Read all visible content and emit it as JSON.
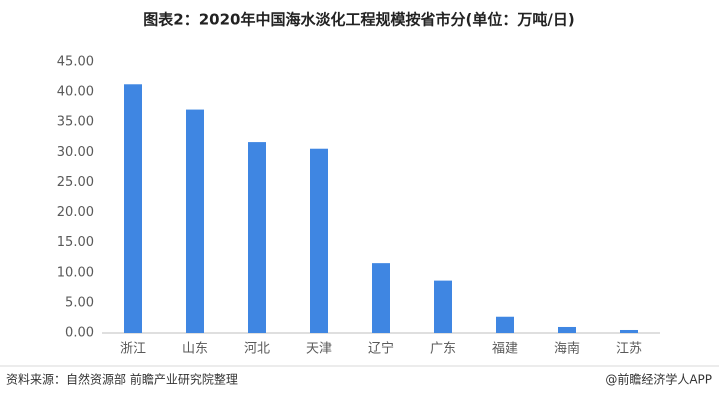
{
  "chart_data": {
    "type": "bar",
    "title": "图表2：2020年中国海水淡化工程规模按省市分(单位：万吨/日)",
    "categories": [
      "浙江",
      "山东",
      "河北",
      "天津",
      "辽宁",
      "广东",
      "福建",
      "海南",
      "江苏"
    ],
    "values": [
      41.3,
      37.1,
      31.7,
      30.6,
      11.6,
      8.7,
      2.7,
      1.0,
      0.5
    ],
    "color": "#3f86e2",
    "ylim": [
      0,
      45
    ],
    "yticks": [
      {
        "value": 0,
        "label": "0.00"
      },
      {
        "value": 5,
        "label": "5.00"
      },
      {
        "value": 10,
        "label": "10.00"
      },
      {
        "value": 15,
        "label": "15.00"
      },
      {
        "value": 20,
        "label": "20.00"
      },
      {
        "value": 25,
        "label": "25.00"
      },
      {
        "value": 30,
        "label": "30.00"
      },
      {
        "value": 35,
        "label": "35.00"
      },
      {
        "value": 40,
        "label": "40.00"
      },
      {
        "value": 45,
        "label": "45.00"
      }
    ],
    "grid": false,
    "source": "资料来源：自然资源部 前瞻产业研究院整理",
    "credit": "@前瞻经济学人APP"
  }
}
